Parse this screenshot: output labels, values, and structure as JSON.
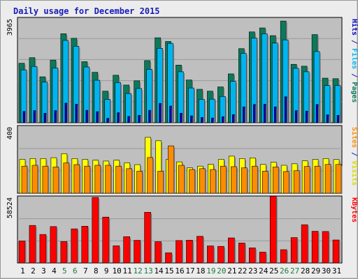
{
  "title": "Daily usage for December 2015",
  "colors": {
    "background": "#ececec",
    "plot_bg": "#bfbfbf",
    "grid": "#9a9a9a",
    "pages": "#0a7a5a",
    "files": "#00b4f0",
    "hits": "#0000c0",
    "visits": "#ffff00",
    "sites": "#ff8c00",
    "kbytes": "#ff0000",
    "weekend_day": "#1a7a3a",
    "weekday": "#000000"
  },
  "chart_data": [
    {
      "type": "bar",
      "panel": "hits-files-pages",
      "categories": [
        "1",
        "2",
        "3",
        "4",
        "5",
        "6",
        "7",
        "8",
        "9",
        "10",
        "11",
        "12",
        "13",
        "14",
        "15",
        "16",
        "17",
        "18",
        "19",
        "20",
        "21",
        "22",
        "23",
        "24",
        "25",
        "26",
        "27",
        "28",
        "29",
        "30",
        "31"
      ],
      "ylim": [
        0,
        3965
      ],
      "tick_label": "3965",
      "legend": [
        "Pages",
        "Files",
        "Hits"
      ],
      "series": [
        {
          "name": "Pages",
          "values": [
            2240,
            2450,
            1730,
            2360,
            3350,
            3180,
            2300,
            1900,
            1190,
            1790,
            1420,
            1580,
            2340,
            3200,
            3060,
            2170,
            1610,
            1260,
            1190,
            1350,
            1840,
            2790,
            3420,
            3570,
            3280,
            3830,
            2200,
            2130,
            3320,
            1680,
            1660
          ]
        },
        {
          "name": "Files",
          "values": [
            1990,
            2120,
            1530,
            2060,
            3100,
            2880,
            2100,
            1600,
            880,
            1510,
            1100,
            1290,
            2010,
            2800,
            2990,
            1920,
            1310,
            880,
            890,
            990,
            1560,
            2610,
            3190,
            3350,
            3000,
            3120,
            2050,
            1920,
            2680,
            1400,
            1400
          ]
        },
        {
          "name": "Hits",
          "values": [
            430,
            460,
            360,
            460,
            740,
            700,
            470,
            420,
            170,
            380,
            240,
            280,
            470,
            730,
            630,
            360,
            260,
            200,
            180,
            230,
            310,
            600,
            690,
            700,
            600,
            980,
            460,
            440,
            690,
            300,
            280
          ]
        }
      ]
    },
    {
      "type": "bar",
      "panel": "visits-sites",
      "categories": [
        "1",
        "2",
        "3",
        "4",
        "5",
        "6",
        "7",
        "8",
        "9",
        "10",
        "11",
        "12",
        "13",
        "14",
        "15",
        "16",
        "17",
        "18",
        "19",
        "20",
        "21",
        "22",
        "23",
        "24",
        "25",
        "26",
        "27",
        "28",
        "29",
        "30",
        "31"
      ],
      "ylim": [
        0,
        400
      ],
      "tick_label": "400",
      "legend": [
        "Visits",
        "Sites"
      ],
      "series": [
        {
          "name": "Visits",
          "values": [
            200,
            205,
            205,
            210,
            234,
            205,
            200,
            195,
            190,
            195,
            180,
            169,
            330,
            310,
            200,
            185,
            150,
            160,
            171,
            200,
            219,
            205,
            209,
            170,
            183,
            165,
            174,
            191,
            200,
            205,
            199
          ]
        },
        {
          "name": "Sites",
          "values": [
            160,
            165,
            160,
            155,
            179,
            169,
            160,
            165,
            165,
            160,
            145,
            130,
            211,
            130,
            280,
            165,
            140,
            145,
            140,
            160,
            157,
            150,
            160,
            130,
            155,
            128,
            133,
            158,
            160,
            170,
            170
          ]
        }
      ]
    },
    {
      "type": "bar",
      "panel": "kbytes",
      "categories": [
        "1",
        "2",
        "3",
        "4",
        "5",
        "6",
        "7",
        "8",
        "9",
        "10",
        "11",
        "12",
        "13",
        "14",
        "15",
        "16",
        "17",
        "18",
        "19",
        "20",
        "21",
        "22",
        "23",
        "24",
        "25",
        "26",
        "27",
        "28",
        "29",
        "30",
        "31"
      ],
      "ylim": [
        0,
        58524
      ],
      "tick_label": "58524",
      "legend": [
        "KBytes"
      ],
      "series": [
        {
          "name": "KBytes",
          "values": [
            19200,
            32800,
            24900,
            31800,
            18700,
            29800,
            32100,
            57300,
            40100,
            15000,
            23000,
            19800,
            44300,
            18600,
            8850,
            19600,
            19900,
            23300,
            14900,
            14500,
            21900,
            17400,
            13200,
            9460,
            58324,
            11600,
            22200,
            33400,
            27700,
            27500,
            20100
          ]
        }
      ]
    }
  ]
}
